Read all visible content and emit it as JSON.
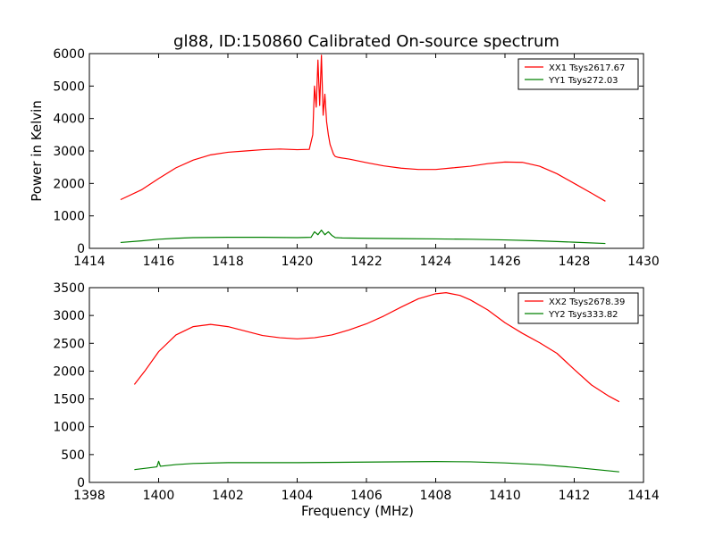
{
  "figure": {
    "title": "gl88, ID:150860 Calibrated On-source spectrum"
  },
  "chart_data": [
    {
      "type": "line",
      "title": "gl88, ID:150860 Calibrated On-source spectrum",
      "xlabel": "",
      "ylabel": "Power in Kelvin",
      "xlim": [
        1414,
        1430
      ],
      "ylim": [
        0,
        6000
      ],
      "xticks": [
        1414,
        1416,
        1418,
        1420,
        1422,
        1424,
        1426,
        1428,
        1430
      ],
      "yticks": [
        0,
        1000,
        2000,
        3000,
        4000,
        5000,
        6000
      ],
      "legend": "top-right",
      "grid": false,
      "series": [
        {
          "name": "XX1 Tsys2617.67",
          "color": "#ff0000",
          "x": [
            1414.9,
            1415.5,
            1416.0,
            1416.5,
            1417.0,
            1417.5,
            1418.0,
            1418.5,
            1419.0,
            1419.5,
            1420.0,
            1420.35,
            1420.45,
            1420.5,
            1420.55,
            1420.6,
            1420.65,
            1420.7,
            1420.75,
            1420.8,
            1420.85,
            1420.9,
            1420.95,
            1421.0,
            1421.05,
            1421.1,
            1421.2,
            1421.5,
            1422.0,
            1422.5,
            1423.0,
            1423.5,
            1424.0,
            1424.5,
            1425.0,
            1425.5,
            1426.0,
            1426.5,
            1427.0,
            1427.5,
            1428.0,
            1428.5,
            1428.9
          ],
          "y": [
            1500,
            1800,
            2150,
            2480,
            2720,
            2880,
            2960,
            3000,
            3040,
            3060,
            3040,
            3050,
            3500,
            5000,
            4350,
            5800,
            4400,
            5950,
            4100,
            4750,
            3900,
            3500,
            3200,
            3050,
            2900,
            2830,
            2800,
            2750,
            2640,
            2540,
            2470,
            2430,
            2430,
            2480,
            2530,
            2610,
            2660,
            2650,
            2530,
            2300,
            2000,
            1700,
            1450
          ]
        },
        {
          "name": "YY1 Tsys272.03",
          "color": "#008000",
          "x": [
            1414.9,
            1415.5,
            1416.0,
            1416.5,
            1417.0,
            1418.0,
            1419.0,
            1420.0,
            1420.4,
            1420.5,
            1420.6,
            1420.7,
            1420.8,
            1420.9,
            1421.0,
            1421.1,
            1421.3,
            1422.0,
            1423.0,
            1424.0,
            1425.0,
            1426.0,
            1427.0,
            1428.0,
            1428.9
          ],
          "y": [
            180,
            230,
            280,
            310,
            330,
            340,
            340,
            330,
            340,
            510,
            420,
            560,
            420,
            510,
            400,
            330,
            320,
            310,
            300,
            290,
            280,
            260,
            230,
            190,
            150
          ]
        }
      ]
    },
    {
      "type": "line",
      "title": "",
      "xlabel": "Frequency (MHz)",
      "ylabel": "",
      "xlim": [
        1398,
        1414
      ],
      "ylim": [
        0,
        3500
      ],
      "xticks": [
        1398,
        1400,
        1402,
        1404,
        1406,
        1408,
        1410,
        1412,
        1414
      ],
      "yticks": [
        0,
        500,
        1000,
        1500,
        2000,
        2500,
        3000,
        3500
      ],
      "legend": "top-right",
      "grid": false,
      "series": [
        {
          "name": "XX2 Tsys2678.39",
          "color": "#ff0000",
          "x": [
            1399.3,
            1399.6,
            1400.0,
            1400.5,
            1401.0,
            1401.5,
            1402.0,
            1402.5,
            1403.0,
            1403.5,
            1404.0,
            1404.5,
            1405.0,
            1405.5,
            1406.0,
            1406.5,
            1407.0,
            1407.5,
            1408.0,
            1408.3,
            1408.7,
            1409.0,
            1409.5,
            1410.0,
            1410.5,
            1411.0,
            1411.5,
            1412.0,
            1412.5,
            1413.0,
            1413.3
          ],
          "y": [
            1760,
            2000,
            2350,
            2650,
            2800,
            2840,
            2800,
            2720,
            2640,
            2600,
            2580,
            2600,
            2650,
            2740,
            2850,
            2990,
            3150,
            3300,
            3390,
            3410,
            3360,
            3280,
            3100,
            2870,
            2680,
            2510,
            2320,
            2030,
            1750,
            1550,
            1450
          ]
        },
        {
          "name": "YY2 Tsys333.82",
          "color": "#008000",
          "x": [
            1399.3,
            1399.7,
            1399.95,
            1400.0,
            1400.05,
            1400.5,
            1401.0,
            1402.0,
            1404.0,
            1406.0,
            1408.0,
            1409.0,
            1410.0,
            1411.0,
            1412.0,
            1413.3
          ],
          "y": [
            230,
            260,
            280,
            380,
            290,
            320,
            340,
            355,
            355,
            365,
            375,
            370,
            350,
            320,
            270,
            190
          ]
        }
      ]
    }
  ]
}
